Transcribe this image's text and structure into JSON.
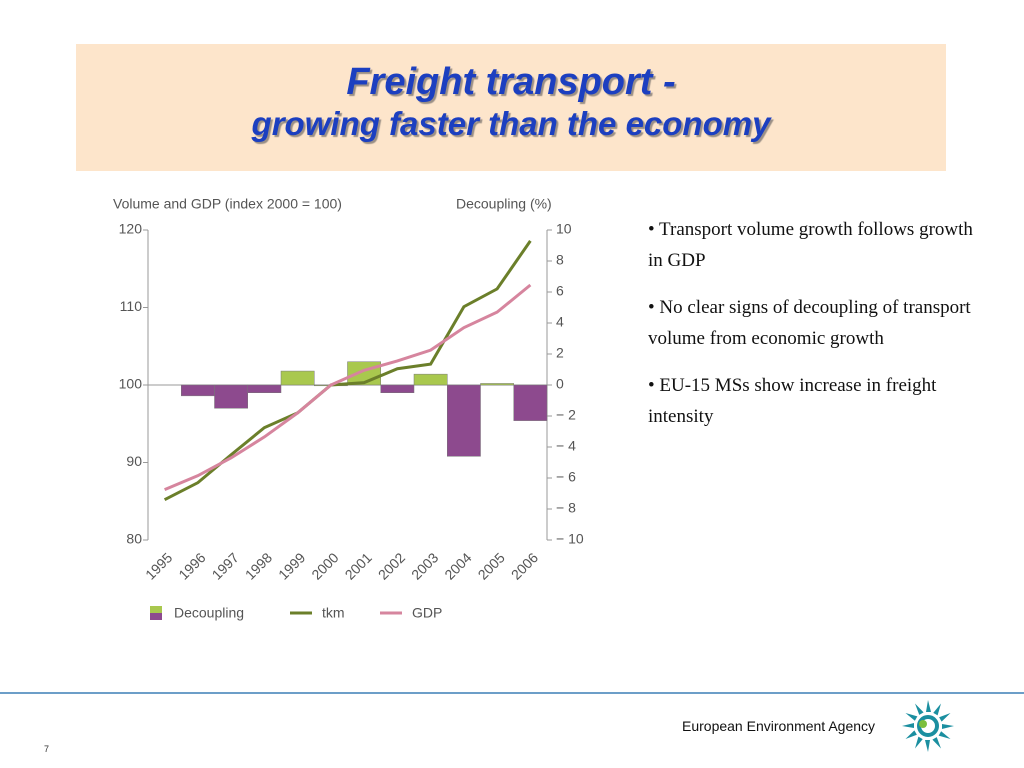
{
  "slide": {
    "title_line1": "Freight transport -",
    "title_line2": "growing faster than the economy",
    "bullets": [
      "• Transport volume   growth  follows growth in GDP",
      "• No clear signs of decoupling of transport volume from economic growth",
      "• EU-15 MSs show increase in freight intensity"
    ],
    "footer": "European Environment Agency",
    "page_number": "7"
  },
  "chart_data": {
    "type": "combo",
    "y_label": "Volume and GDP (index 2000 = 100)",
    "y2_label": "Decoupling (%)",
    "categories": [
      "1995",
      "1996",
      "1997",
      "1998",
      "1999",
      "2000",
      "2001",
      "2002",
      "2003",
      "2004",
      "2005",
      "2006"
    ],
    "ylim": [
      80,
      120
    ],
    "yticks": [
      80,
      90,
      100,
      110,
      120
    ],
    "y2lim": [
      -10,
      10
    ],
    "y2ticks": [
      {
        "value": -10,
        "label": "− 10"
      },
      {
        "value": -8,
        "label": "− 8"
      },
      {
        "value": -6,
        "label": "− 6"
      },
      {
        "value": -4,
        "label": "− 4"
      },
      {
        "value": -2,
        "label": "− 2"
      },
      0,
      2,
      4,
      6,
      8,
      10
    ],
    "series": [
      {
        "name": "Decoupling",
        "type": "bar",
        "axis": "y2",
        "color": "#a9c84e",
        "negative_color": "#8d4a8e",
        "values": [
          null,
          -0.7,
          -1.5,
          -0.5,
          0.9,
          0,
          1.5,
          -0.5,
          0.7,
          -4.6,
          0.1,
          -2.3
        ]
      },
      {
        "name": "tkm",
        "type": "line",
        "color": "#6b7f2a",
        "values": [
          85.2,
          87.4,
          91.0,
          94.5,
          96.4,
          100,
          100.3,
          102.1,
          102.7,
          110.1,
          112.4,
          118.6
        ]
      },
      {
        "name": "GDP",
        "type": "line",
        "color": "#d6859e",
        "values": [
          86.5,
          88.3,
          90.6,
          93.3,
          96.4,
          100,
          101.9,
          103.1,
          104.5,
          107.4,
          109.4,
          112.9
        ]
      }
    ]
  }
}
